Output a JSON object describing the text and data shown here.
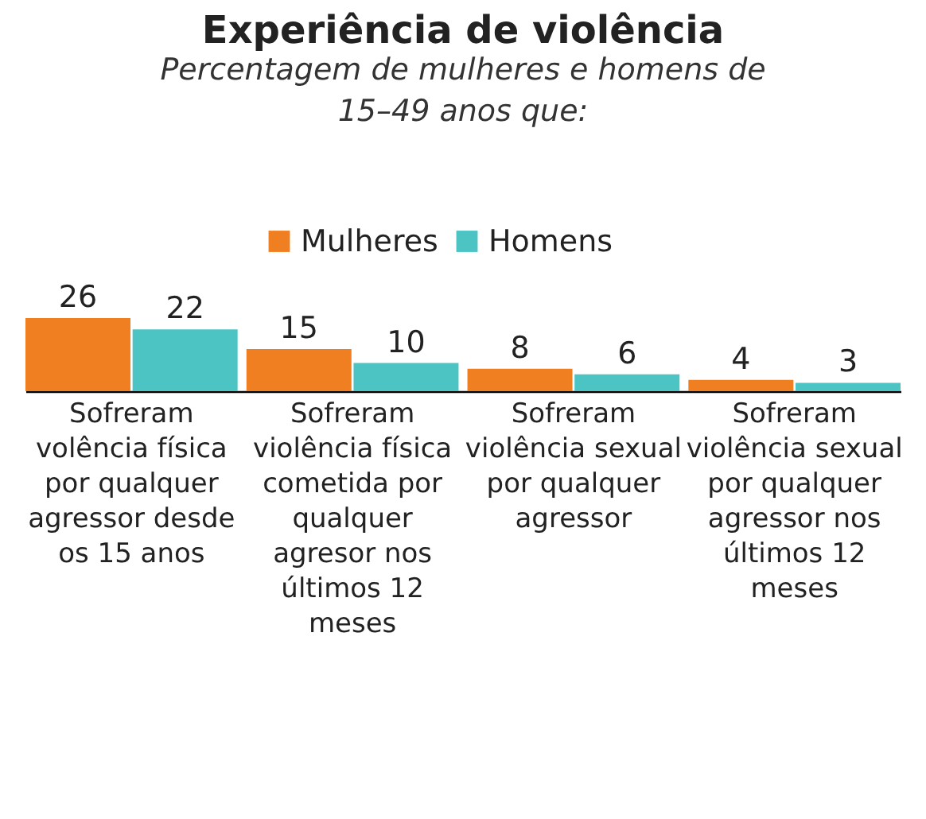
{
  "chart_data": {
    "type": "bar",
    "title": "Experiência de violência",
    "subtitle": "Percentagem de mulheres e homens de 15–49 anos que:",
    "categories": [
      "Sofreram volência física por qualquer agressor desde os 15 anos",
      "Sofreram violência física cometida por qualquer agresor nos últimos 12 meses",
      "Sofreram violência sexual por qualquer agressor",
      "Sofreram violência sexual por qualquer agressor nos últimos 12 meses"
    ],
    "series": [
      {
        "name": "Mulheres",
        "color": "#f07f21",
        "values": [
          26,
          15,
          8,
          4
        ]
      },
      {
        "name": "Homens",
        "color": "#4cc4c4",
        "values": [
          22,
          10,
          6,
          3
        ]
      }
    ],
    "data_labels": true,
    "legend": "top",
    "grid": false
  }
}
